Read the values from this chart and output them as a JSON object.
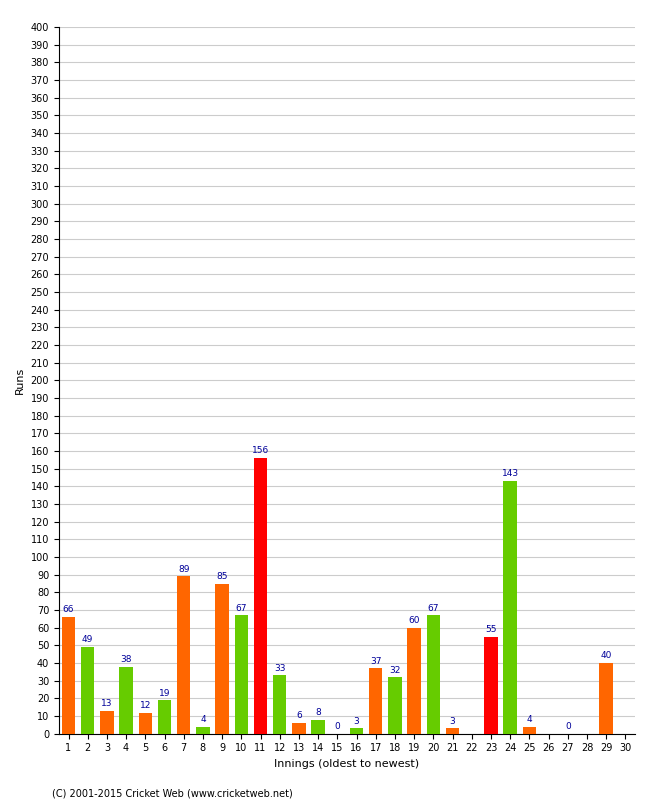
{
  "xlabel": "Innings (oldest to newest)",
  "ylabel": "Runs",
  "match_count": 15,
  "bar1_values": [
    66,
    13,
    12,
    89,
    85,
    156,
    6,
    0,
    37,
    60,
    3,
    55,
    4,
    0,
    40
  ],
  "bar2_values": [
    49,
    38,
    19,
    4,
    67,
    33,
    8,
    3,
    32,
    67,
    0,
    143,
    0,
    0,
    0
  ],
  "bar1_colors": [
    "#ff6600",
    "#ff6600",
    "#ff6600",
    "#ff6600",
    "#ff6600",
    "#ff0000",
    "#ff6600",
    "#ff6600",
    "#ff6600",
    "#ff6600",
    "#ff6600",
    "#ff0000",
    "#ff6600",
    "#ff6600",
    "#ff6600"
  ],
  "bar2_colors": [
    "#66cc00",
    "#66cc00",
    "#66cc00",
    "#66cc00",
    "#66cc00",
    "#66cc00",
    "#66cc00",
    "#66cc00",
    "#66cc00",
    "#66cc00",
    "#66cc00",
    "#66cc00",
    "#66cc00",
    "#66cc00",
    "#66cc00"
  ],
  "bar1_show": [
    true,
    true,
    true,
    true,
    true,
    true,
    true,
    true,
    true,
    true,
    true,
    true,
    true,
    true,
    true
  ],
  "bar2_show": [
    true,
    true,
    true,
    true,
    true,
    true,
    true,
    true,
    true,
    true,
    false,
    true,
    false,
    false,
    false
  ],
  "x_labels": [
    "1",
    "2",
    "3",
    "4",
    "5",
    "6",
    "7",
    "8",
    "9",
    "10",
    "11",
    "12",
    "13",
    "14",
    "15",
    "16",
    "17",
    "18",
    "19",
    "20",
    "21",
    "22",
    "23",
    "24",
    "25",
    "26",
    "27",
    "28",
    "29",
    "30"
  ],
  "ylim": [
    0,
    400
  ],
  "yticks": [
    0,
    10,
    20,
    30,
    40,
    50,
    60,
    70,
    80,
    90,
    100,
    110,
    120,
    130,
    140,
    150,
    160,
    170,
    180,
    190,
    200,
    210,
    220,
    230,
    240,
    250,
    260,
    270,
    280,
    290,
    300,
    310,
    320,
    330,
    340,
    350,
    360,
    370,
    380,
    390,
    400
  ],
  "bg_color": "#ffffff",
  "grid_color": "#cccccc",
  "label_color": "#000099",
  "label_fontsize": 6.5,
  "copyright": "(C) 2001-2015 Cricket Web (www.cricketweb.net)"
}
